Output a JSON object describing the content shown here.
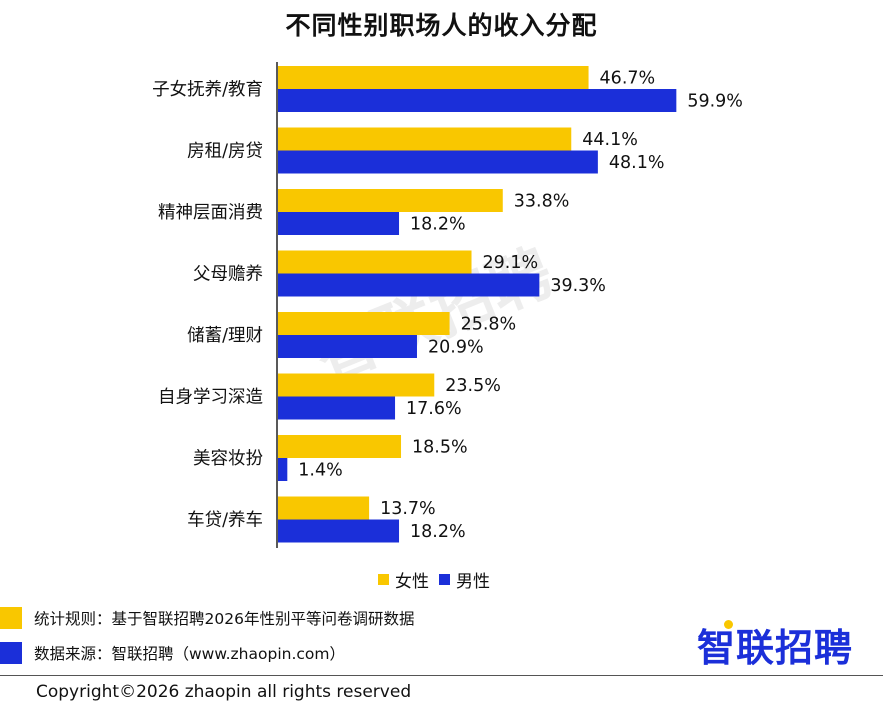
{
  "chart_data": {
    "type": "bar",
    "orientation": "horizontal",
    "title": "不同性别职场人的收入分配",
    "categories": [
      "子女抚养/教育",
      "房租/房贷",
      "精神层面消费",
      "父母赡养",
      "储蓄/理财",
      "自身学习深造",
      "美容妆扮",
      "车贷/养车"
    ],
    "series": [
      {
        "name": "女性",
        "color": "#f9c700",
        "values": [
          46.7,
          44.1,
          33.8,
          29.1,
          25.8,
          23.5,
          18.5,
          13.7
        ],
        "labels": [
          "46.7%",
          "44.1%",
          "33.8%",
          "29.1%",
          "25.8%",
          "23.5%",
          "18.5%",
          "13.7%"
        ]
      },
      {
        "name": "男性",
        "color": "#1b2fd9",
        "values": [
          59.9,
          48.1,
          18.2,
          39.3,
          20.9,
          17.6,
          1.4,
          18.2
        ],
        "labels": [
          "59.9%",
          "48.1%",
          "18.2%",
          "39.3%",
          "20.9%",
          "17.6%",
          "1.4%",
          "18.2%"
        ]
      }
    ],
    "xlim": [
      0,
      66
    ],
    "grid": false,
    "legend_position": "bottom"
  },
  "watermark": "智联招聘",
  "notes": {
    "rule": "统计规则：基于智联招聘2026年性别平等问卷调研数据",
    "source": "数据来源：智联招聘（www.zhaopin.com）"
  },
  "logo": "智联招聘",
  "copyright": "Copyright©2026 zhaopin all rights reserved"
}
